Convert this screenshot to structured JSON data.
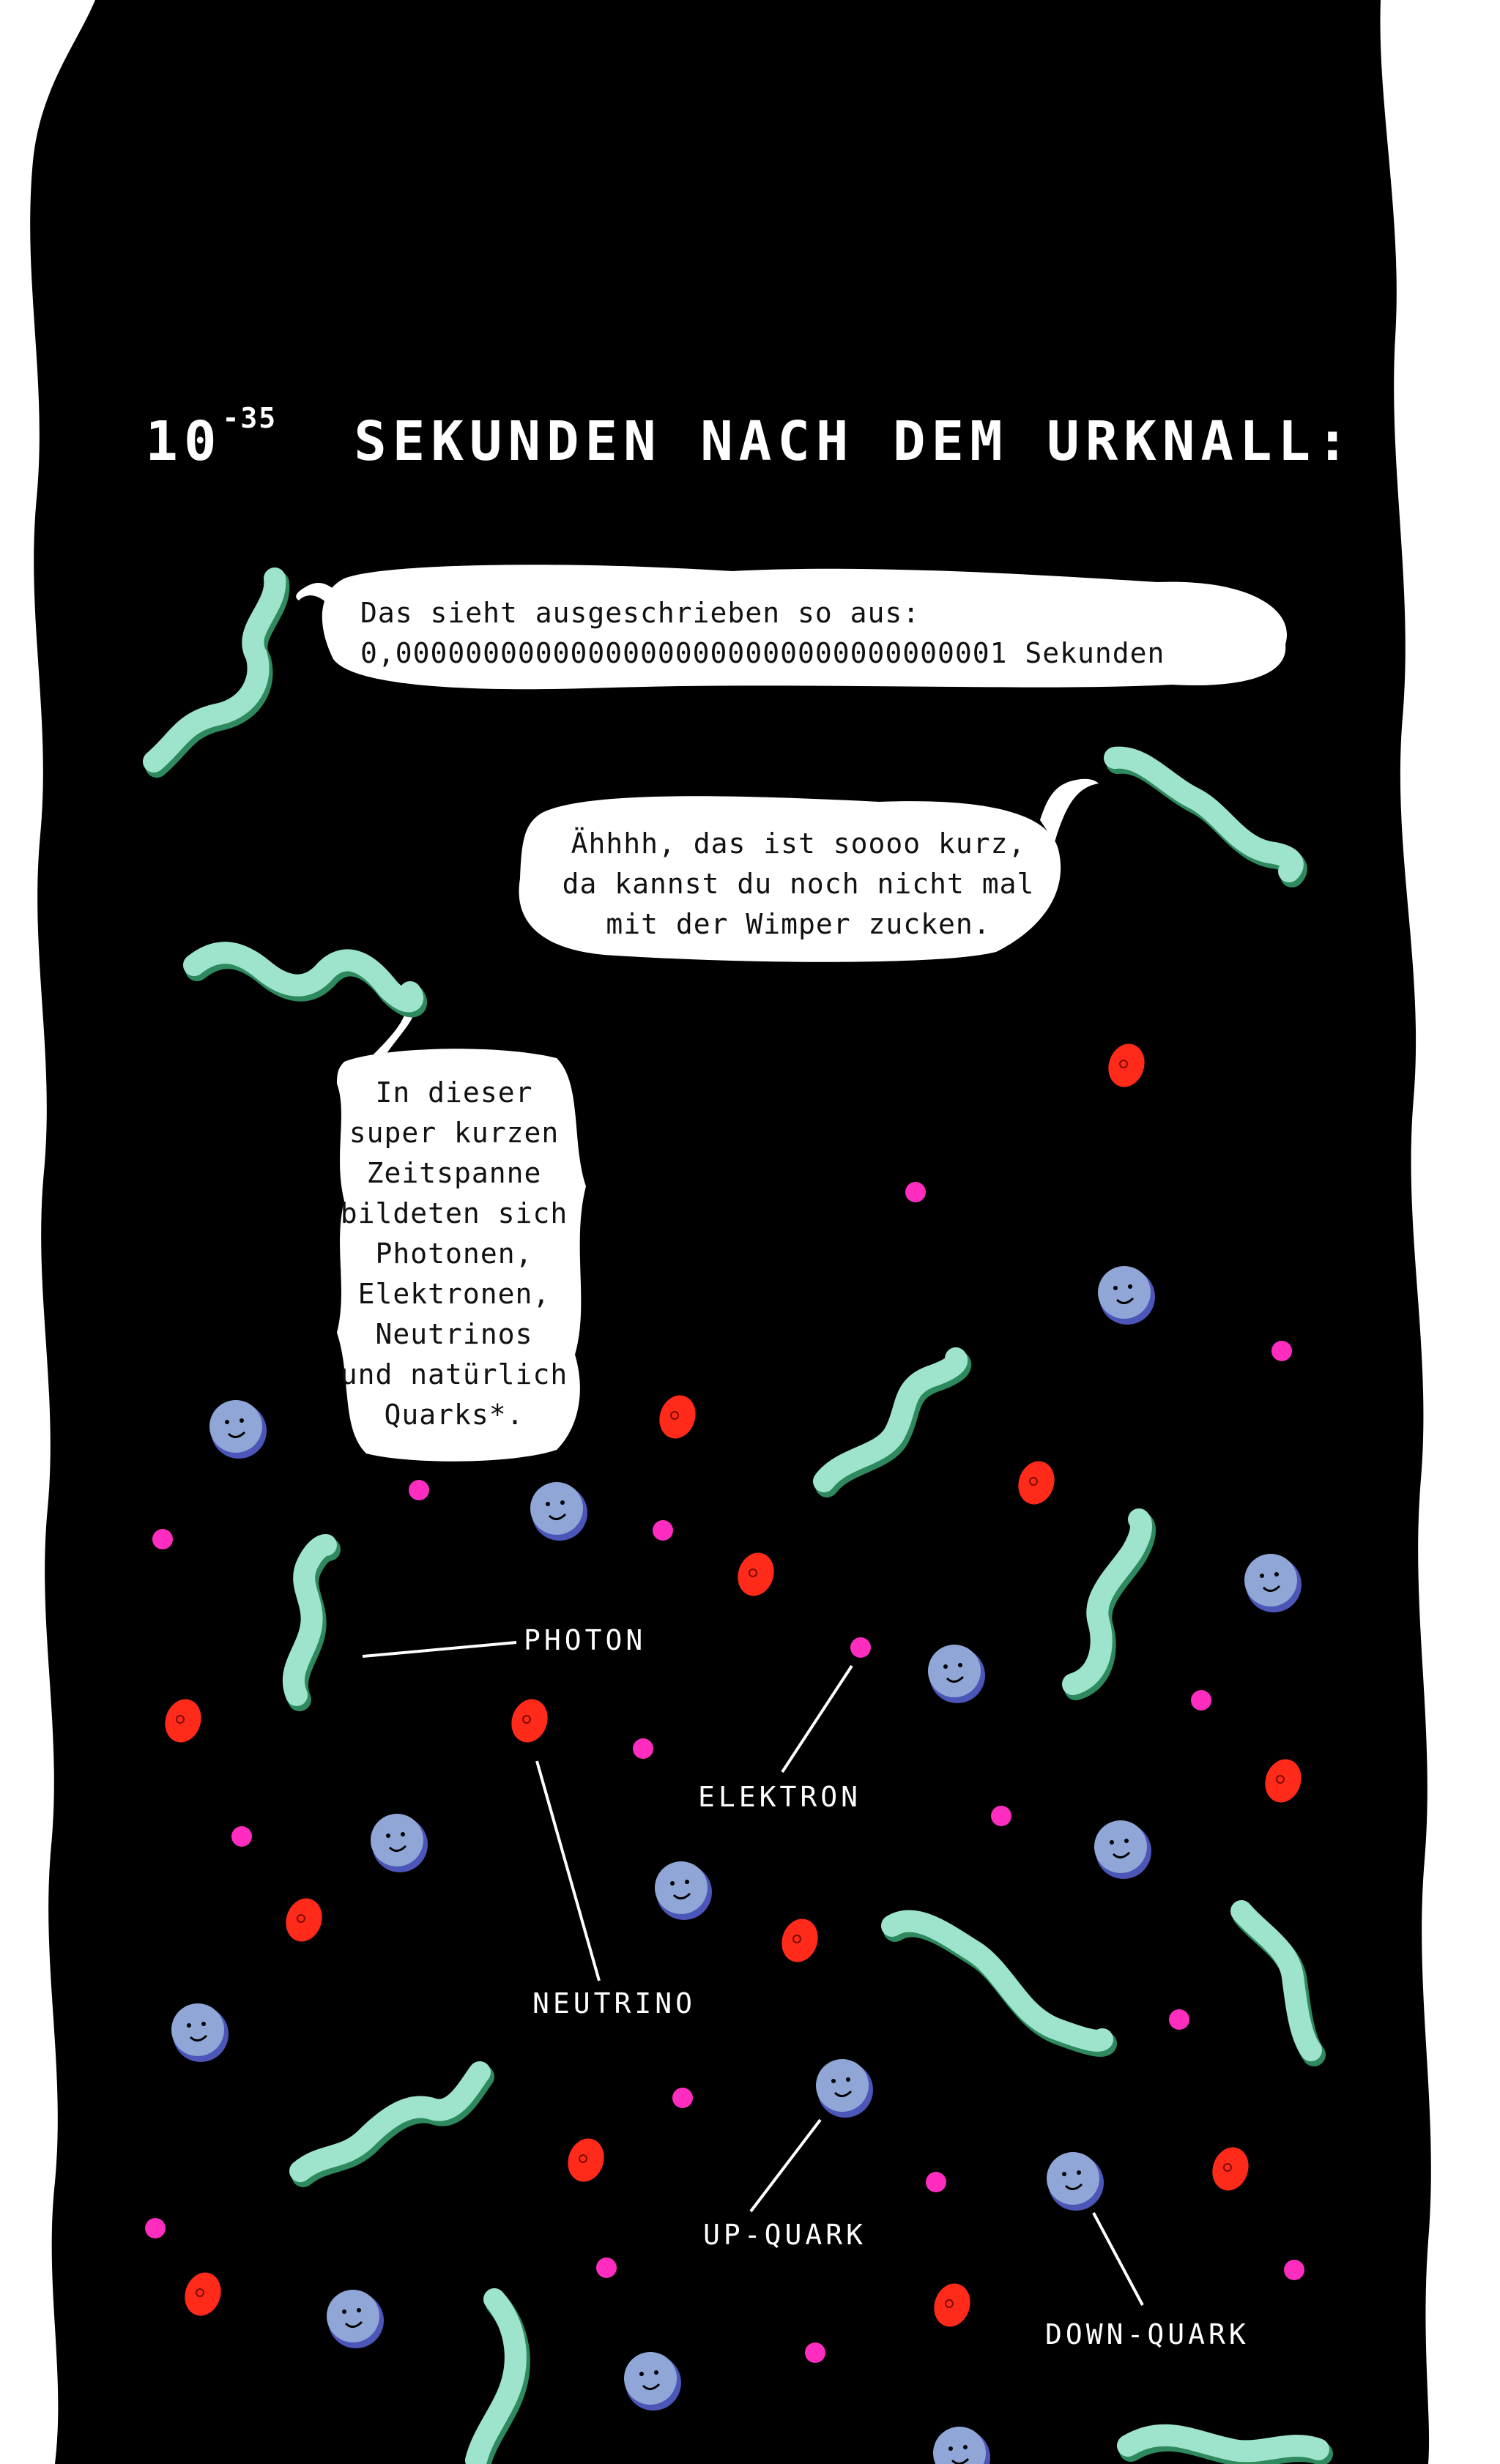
{
  "heading": {
    "base": "10",
    "exponent": "-35",
    "text": "SEKUNDEN NACH DEM URKNALL:"
  },
  "bubbles": {
    "first": {
      "line1": "Das sieht ausgeschrieben so aus:",
      "line2": "0,00000000000000000000000000000000001 Sekunden"
    },
    "second": {
      "line1": "Ähhhh, das ist soooo kurz,",
      "line2": "da kannst du noch nicht mal",
      "line3": "mit der Wimper zucken."
    },
    "third": {
      "line1": "In dieser",
      "line2": "super kurzen",
      "line3": "Zeitspanne",
      "line4": "bildeten sich",
      "line5": "Photonen,",
      "line6": "Elektronen,",
      "line7": "Neutrinos",
      "line8": "und natürlich",
      "line9": "Quarks*."
    }
  },
  "labels": {
    "photon": "PHOTON",
    "elektron": "ELEKTRON",
    "neutrino": "NEUTRINO",
    "up_quark": "UP-QUARK",
    "down_quark": "DOWN-QUARK"
  },
  "colors": {
    "background": "#000000",
    "photon": "#9ee3cc",
    "photon_shadow": "#2e8a5e",
    "up_quark": "#8fa6d6",
    "up_quark_shadow": "#4c55b8",
    "neutrino": "#ff2a1a",
    "electron": "#ff2cc0"
  }
}
